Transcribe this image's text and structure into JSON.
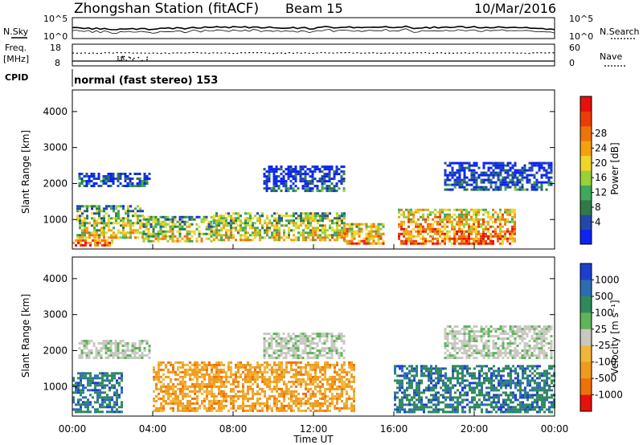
{
  "header": {
    "title": "Zhongshan Station (fitACF)",
    "beam": "Beam 15",
    "date": "10/Mar/2016"
  },
  "noise_panel": {
    "left_label": "N.Sky",
    "left_ticks": [
      "10^5",
      "10^0"
    ],
    "right_ticks": [
      "10^5",
      "10^0"
    ],
    "right_label": "N.Search"
  },
  "freq_panel": {
    "left_label_1": "Freq.",
    "left_label_2": "[MHz]",
    "left_ticks": [
      "18",
      "8"
    ],
    "right_ticks": [
      "60",
      "0"
    ],
    "right_label": "Nave"
  },
  "cpid": {
    "label": "CPID",
    "text": "normal (fast stereo) 153"
  },
  "x_axis": {
    "ticks": [
      "00:00",
      "04:00",
      "08:00",
      "12:00",
      "16:00",
      "20:00",
      "00:00"
    ],
    "label": "Time UT"
  },
  "chart_data": [
    {
      "type": "heatmap",
      "name": "power",
      "ylabel": "Slant Range [km]",
      "y_ticks": [
        1000,
        2000,
        3000,
        4000
      ],
      "ylim": [
        180,
        4600
      ],
      "xlim_hours": [
        0,
        24
      ],
      "colorbar": {
        "label": "Power [dB]",
        "ticks": [
          "4",
          "8",
          "12",
          "16",
          "20",
          "24",
          "28"
        ],
        "colors": [
          "#0b24f5",
          "#2248ad",
          "#2e7b46",
          "#3fa85a",
          "#9ad03a",
          "#f2d52b",
          "#f5a10e",
          "#f07308",
          "#ec3d06",
          "#e8100c"
        ]
      },
      "echo_regions": [
        {
          "t": [
            0.0,
            2.0
          ],
          "range_km": [
            300,
            450
          ],
          "level": 0.9
        },
        {
          "t": [
            0.2,
            3.5
          ],
          "range_km": [
            500,
            1400
          ],
          "level": 0.55
        },
        {
          "t": [
            0.3,
            3.8
          ],
          "range_km": [
            1900,
            2300
          ],
          "level": 0.25
        },
        {
          "t": [
            3.5,
            7.0
          ],
          "range_km": [
            400,
            1100
          ],
          "level": 0.55
        },
        {
          "t": [
            7.0,
            13.5
          ],
          "range_km": [
            400,
            1200
          ],
          "level": 0.6
        },
        {
          "t": [
            9.5,
            13.5
          ],
          "range_km": [
            1800,
            2500
          ],
          "level": 0.2
        },
        {
          "t": [
            13.5,
            15.5
          ],
          "range_km": [
            300,
            900
          ],
          "level": 0.75
        },
        {
          "t": [
            16.2,
            22.0
          ],
          "range_km": [
            300,
            1300
          ],
          "level": 0.8
        },
        {
          "t": [
            18.5,
            23.8
          ],
          "range_km": [
            1800,
            2600
          ],
          "level": 0.2
        }
      ]
    },
    {
      "type": "heatmap",
      "name": "velocity",
      "ylabel": "Slant Range [km]",
      "y_ticks": [
        1000,
        2000,
        3000,
        4000
      ],
      "ylim": [
        180,
        4600
      ],
      "xlim_hours": [
        0,
        24
      ],
      "colorbar": {
        "label": "Velocity [m s⁻¹]",
        "ticks": [
          "1000",
          "500",
          "100",
          "25",
          "-25",
          "-100",
          "-500",
          "-1000"
        ],
        "colors": [
          "#1d3fd0",
          "#2c6db0",
          "#2e8a5a",
          "#5fb45a",
          "#c8c8c0",
          "#f0b63a",
          "#f09a1e",
          "#ee7208",
          "#e8100c"
        ]
      },
      "echo_regions": [
        {
          "t": [
            0.0,
            2.5
          ],
          "range_km": [
            300,
            1400
          ],
          "kind": "positive"
        },
        {
          "t": [
            0.3,
            3.8
          ],
          "range_km": [
            1800,
            2300
          ],
          "kind": "near-zero"
        },
        {
          "t": [
            4.0,
            14.0
          ],
          "range_km": [
            300,
            1700
          ],
          "kind": "negative"
        },
        {
          "t": [
            9.5,
            13.5
          ],
          "range_km": [
            1800,
            2500
          ],
          "kind": "near-zero"
        },
        {
          "t": [
            16.0,
            24.0
          ],
          "range_km": [
            300,
            1600
          ],
          "kind": "positive"
        },
        {
          "t": [
            18.5,
            23.8
          ],
          "range_km": [
            1800,
            2700
          ],
          "kind": "near-zero"
        }
      ]
    }
  ]
}
